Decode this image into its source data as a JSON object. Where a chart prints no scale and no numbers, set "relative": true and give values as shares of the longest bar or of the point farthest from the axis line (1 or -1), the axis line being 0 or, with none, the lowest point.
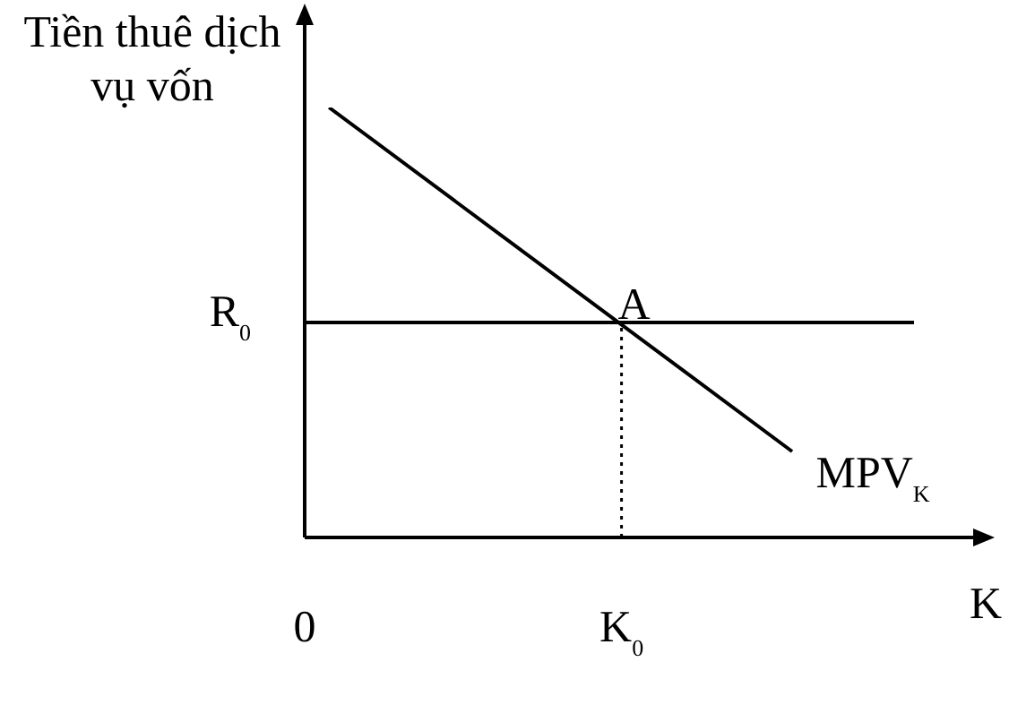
{
  "chart_data": {
    "type": "line",
    "relative": true,
    "xlabel": "K",
    "ylabel": "Tiền thuê dịch vụ vốn",
    "marker": "none",
    "categories": [
      "0",
      null,
      null,
      null,
      null,
      null,
      null,
      null,
      null,
      null,
      null,
      null,
      null,
      "K$_{0}$",
      null,
      null,
      null,
      null,
      null,
      null,
      null,
      null,
      null,
      null,
      null,
      null
    ],
    "series": [
      {
        "name": "MPV$_{K}$",
        "color": "#000000",
        "values": [
          null,
          1,
          null,
          null,
          null,
          null,
          null,
          null,
          null,
          null,
          null,
          null,
          null,
          null,
          null,
          null,
          null,
          null,
          null,
          null,
          0.2,
          null,
          null,
          null,
          null,
          null
        ]
      },
      {
        "color": "#000000",
        "x": [
          "K$_{0}$",
          "K$_{0}$"
        ],
        "values": [
          0,
          0.5
        ],
        "line_style": "dotted"
      }
    ],
    "ref_lines": [
      {
        "axis": "y",
        "value": 0.5,
        "label": "R$_{0}$",
        "color": "#000000",
        "line_style": "solid"
      }
    ],
    "annotations": [
      {
        "text": "A",
        "x": "K$_{0}$",
        "y": 0.5
      }
    ]
  }
}
